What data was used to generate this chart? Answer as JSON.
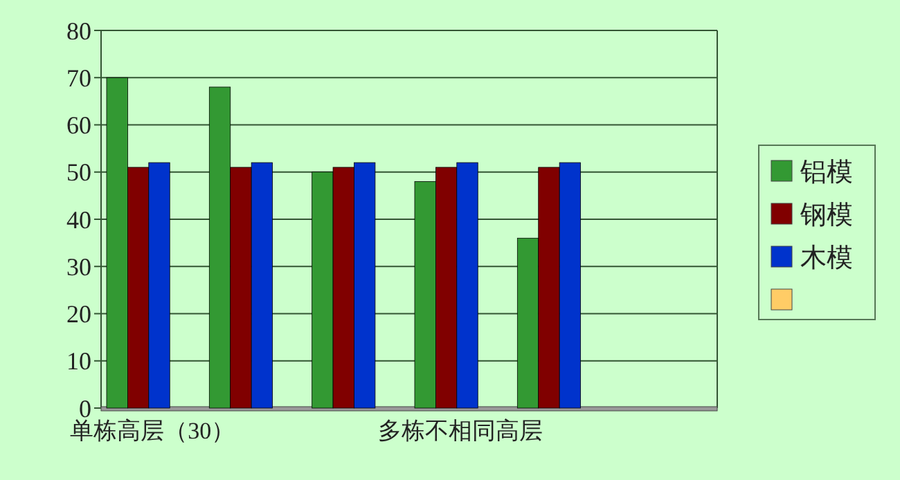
{
  "chart_data": {
    "type": "bar",
    "categories": [
      "单栋高层（30）",
      null,
      null,
      "多栋不相同高层",
      null,
      null
    ],
    "series": [
      {
        "name": "铝模",
        "color": "#339933",
        "values": [
          70,
          68,
          50,
          48,
          36,
          null
        ]
      },
      {
        "name": "钢模",
        "color": "#800000",
        "values": [
          51,
          51,
          51,
          51,
          51,
          null
        ]
      },
      {
        "name": "木模",
        "color": "#0033cc",
        "values": [
          52,
          52,
          52,
          52,
          52,
          null
        ]
      },
      {
        "color": "#ffcc66",
        "values": [
          null,
          null,
          null,
          null,
          null,
          null
        ]
      }
    ],
    "ylim": [
      0,
      80
    ],
    "yticks": [
      0,
      10,
      20,
      30,
      40,
      50,
      60,
      70,
      80
    ],
    "grid": "y",
    "legend": "right"
  }
}
